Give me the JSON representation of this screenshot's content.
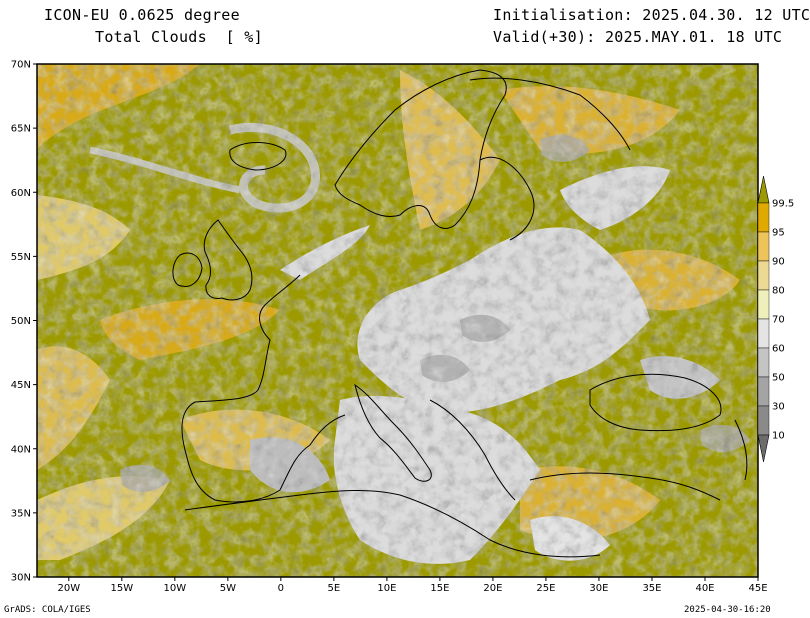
{
  "header": {
    "model": "ICON-EU 0.0625 degree",
    "field": "Total Clouds  [ %]",
    "initialisation": "Initialisation: 2025.04.30. 12 UTC",
    "valid": "Valid(+30): 2025.MAY.01. 18 UTC"
  },
  "footer": {
    "software": "GrADS: COLA/IGES",
    "timestamp": "2025-04-30-16:20"
  },
  "map": {
    "lon_range": [
      -23,
      45
    ],
    "lat_range": [
      30,
      70
    ],
    "lat_ticks": [
      "30N",
      "35N",
      "40N",
      "45N",
      "50N",
      "55N",
      "60N",
      "65N",
      "70N"
    ],
    "lon_ticks": [
      "20W",
      "15W",
      "10W",
      "5W",
      "0",
      "5E",
      "10E",
      "15E",
      "20E",
      "25E",
      "30E",
      "35E",
      "40E",
      "45E"
    ],
    "colors": {
      "full_cloud": "#9c9a00",
      "clear": "#dcdcdc",
      "coast": "#000000"
    }
  },
  "colorbar": {
    "labels": [
      "99.5",
      "95",
      "90",
      "80",
      "70",
      "60",
      "50",
      "30",
      "10"
    ],
    "colors": [
      "#9c9a00",
      "#e0a900",
      "#edc45a",
      "#ecd993",
      "#efefbc",
      "#e4e4e4",
      "#c4c4c4",
      "#a4a4a4",
      "#8a8a8a",
      "#6c6c6c"
    ]
  }
}
